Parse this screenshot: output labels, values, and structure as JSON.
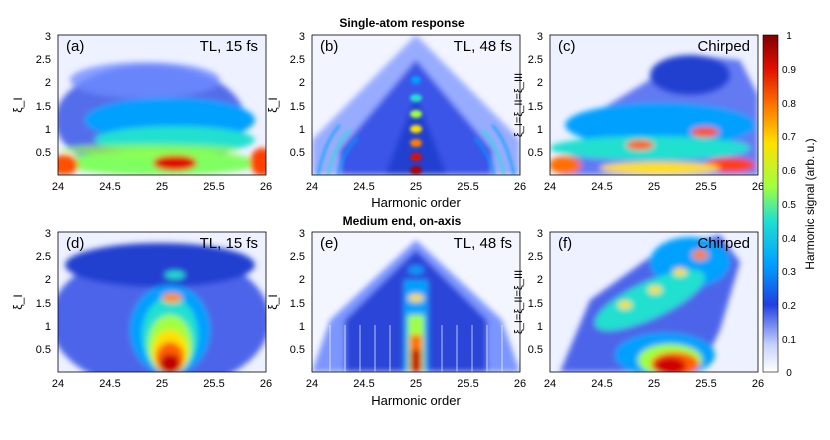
{
  "figure": {
    "top_title": "Single-atom response",
    "middle_title": "Medium end, on-axis",
    "x_axis_label": "Harmonic order"
  },
  "chart_data": [
    {
      "type": "heatmap",
      "panel": "(a)",
      "label": "TL, 15 fs",
      "xlabel": "",
      "ylabel": "ξ_I",
      "xlim": [
        24,
        26
      ],
      "ylim": [
        0,
        3
      ],
      "xticks": [
        "24",
        "24.5",
        "25",
        "25.5",
        "26"
      ],
      "yticks": [
        "0.5",
        "1",
        "1.5",
        "2",
        "2.5",
        "3"
      ]
    },
    {
      "type": "heatmap",
      "panel": "(b)",
      "label": "TL, 48 fs",
      "xlabel": "Harmonic order",
      "ylabel": "ξ_I",
      "xlim": [
        24,
        26
      ],
      "ylim": [
        0,
        3
      ],
      "xticks": [
        "24",
        "24.5",
        "25",
        "25.5",
        "26"
      ],
      "yticks": [
        "0.5",
        "1",
        "1.5",
        "2",
        "2.5",
        "3"
      ]
    },
    {
      "type": "heatmap",
      "panel": "(c)",
      "label": "Chirped",
      "xlabel": "",
      "ylabel": "ξ_I=ξ_II=ξ_III",
      "xlim": [
        24,
        26
      ],
      "ylim": [
        0,
        3
      ],
      "xticks": [
        "24",
        "24.5",
        "25",
        "25.5",
        "26"
      ],
      "yticks": [
        "0.5",
        "1",
        "1.5",
        "2",
        "2.5",
        "3"
      ]
    },
    {
      "type": "heatmap",
      "panel": "(d)",
      "label": "TL, 15 fs",
      "xlabel": "",
      "ylabel": "ξ_I",
      "xlim": [
        24,
        26
      ],
      "ylim": [
        0,
        3
      ],
      "xticks": [
        "24",
        "24.5",
        "25",
        "25.5",
        "26"
      ],
      "yticks": [
        "0.5",
        "1",
        "1.5",
        "2",
        "2.5",
        "3"
      ]
    },
    {
      "type": "heatmap",
      "panel": "(e)",
      "label": "TL, 48 fs",
      "xlabel": "Harmonic order",
      "ylabel": "ξ_I",
      "xlim": [
        24,
        26
      ],
      "ylim": [
        0,
        3
      ],
      "xticks": [
        "24",
        "24.5",
        "25",
        "25.5",
        "26"
      ],
      "yticks": [
        "0.5",
        "1",
        "1.5",
        "2",
        "2.5",
        "3"
      ]
    },
    {
      "type": "heatmap",
      "panel": "(f)",
      "label": "Chirped",
      "xlabel": "",
      "ylabel": "ξ_I=ξ_II=ξ_III",
      "xlim": [
        24,
        26
      ],
      "ylim": [
        0,
        3
      ],
      "xticks": [
        "24",
        "24.5",
        "25",
        "25.5",
        "26"
      ],
      "yticks": [
        "0.5",
        "1",
        "1.5",
        "2",
        "2.5",
        "3"
      ]
    }
  ],
  "colorbar": {
    "label": "Harmonic signal (arb. u.)",
    "range": [
      0,
      1
    ],
    "ticks": [
      "0",
      "0.1",
      "0.2",
      "0.3",
      "0.4",
      "0.5",
      "0.6",
      "0.7",
      "0.8",
      "0.9",
      "1"
    ],
    "colors": [
      "#ffffff",
      "#7b9bff",
      "#2040e0",
      "#00a0ff",
      "#20e0d0",
      "#a0ff40",
      "#ffe000",
      "#ff8000",
      "#e01000",
      "#800000"
    ]
  }
}
